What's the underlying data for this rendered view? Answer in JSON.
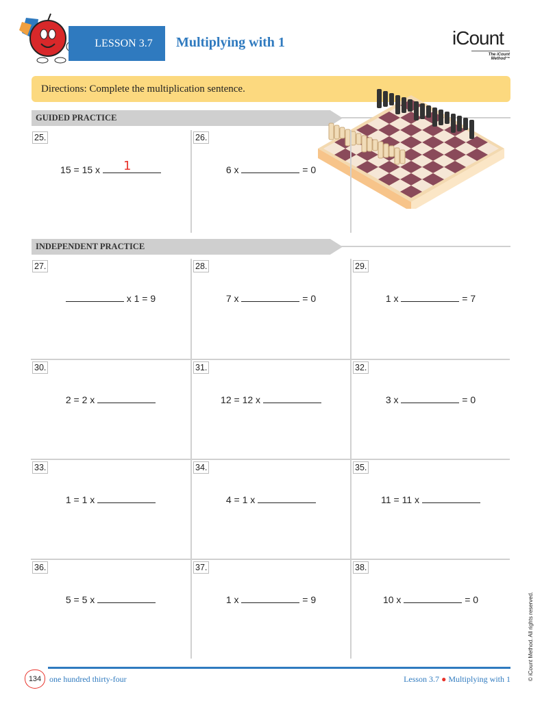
{
  "header": {
    "lesson": "LESSON 3.7",
    "title": "Multiplying with 1",
    "logo": "iCount",
    "logo_tagline": "The iCount Method™"
  },
  "directions": "Directions: Complete the multiplication sentence.",
  "sections": {
    "guided": "GUIDED PRACTICE",
    "independent": "INDEPENDENT PRACTICE"
  },
  "guided": [
    {
      "num": "25.",
      "pre": "15 = 15 x",
      "post": "",
      "answer": "1"
    },
    {
      "num": "26.",
      "pre": "6 x",
      "post": "= 0"
    }
  ],
  "independent": [
    {
      "num": "27.",
      "pre": "",
      "post": "x 1 = 9"
    },
    {
      "num": "28.",
      "pre": "7 x",
      "post": "= 0"
    },
    {
      "num": "29.",
      "pre": "1 x",
      "post": "= 7"
    },
    {
      "num": "30.",
      "pre": "2 = 2 x",
      "post": ""
    },
    {
      "num": "31.",
      "pre": "12 = 12 x",
      "post": ""
    },
    {
      "num": "32.",
      "pre": "3 x",
      "post": "= 0"
    },
    {
      "num": "33.",
      "pre": "1 = 1 x",
      "post": ""
    },
    {
      "num": "34.",
      "pre": "4 = 1 x",
      "post": ""
    },
    {
      "num": "35.",
      "pre": "11 = 11 x",
      "post": ""
    },
    {
      "num": "36.",
      "pre": "5 = 5 x",
      "post": ""
    },
    {
      "num": "37.",
      "pre": "1 x",
      "post": "= 9"
    },
    {
      "num": "38.",
      "pre": "10 x",
      "post": "= 0"
    }
  ],
  "footer": {
    "page_number": "134",
    "page_words": "one hundred thirty-four",
    "lesson": "Lesson 3.7",
    "title": "Multiplying with 1",
    "copyright": "© iCount Method. All rights reserved."
  },
  "colors": {
    "accent": "#2f7abf",
    "directions_bg": "#fcd97f",
    "answer": "#e8322a"
  }
}
